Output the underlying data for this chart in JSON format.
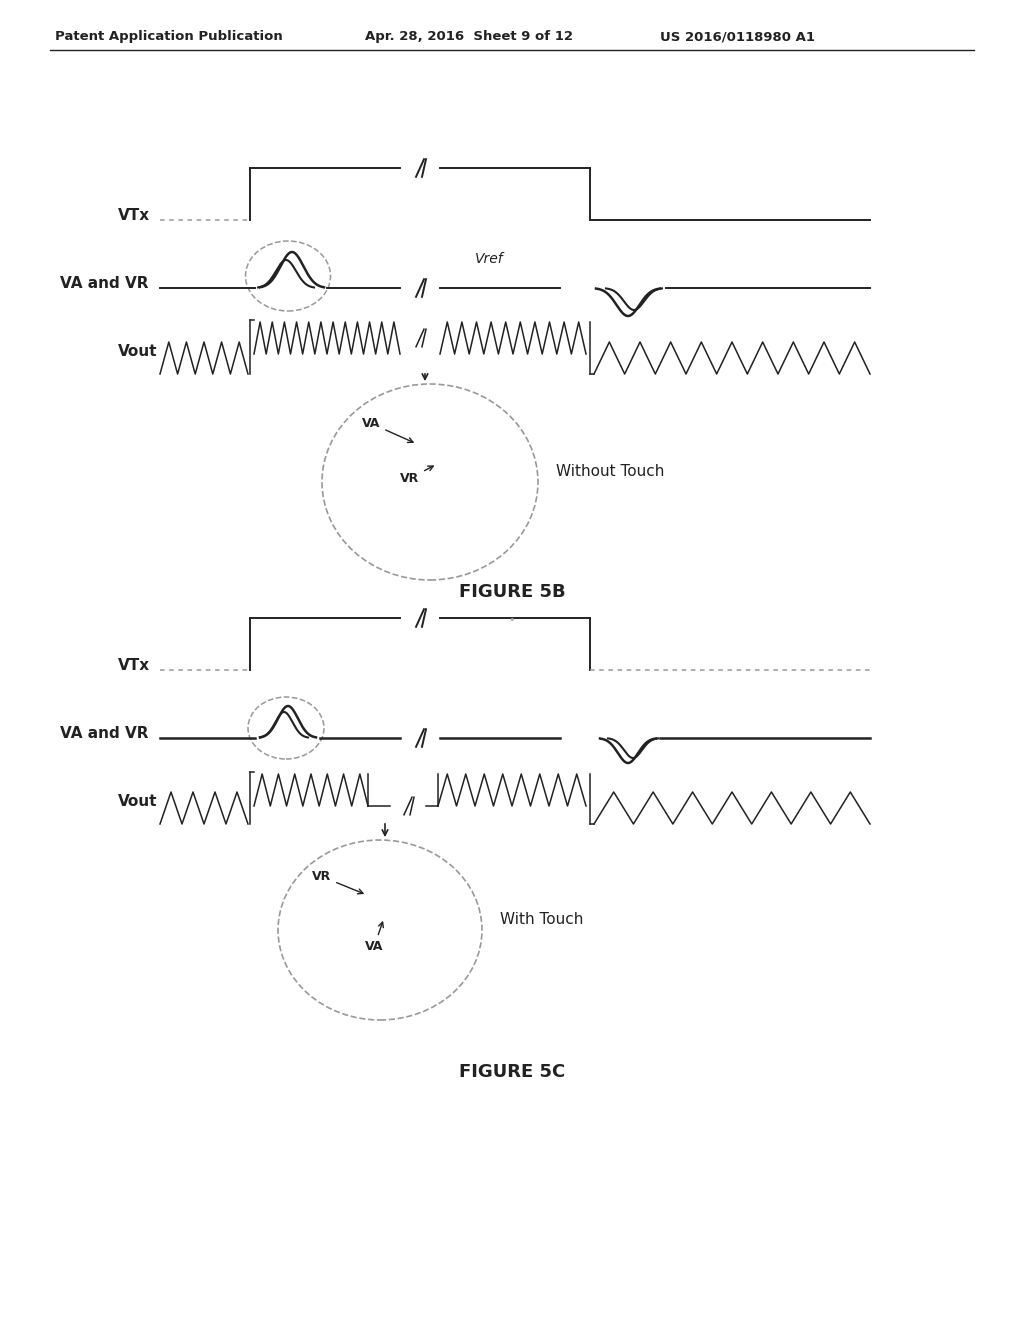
{
  "header_left": "Patent Application Publication",
  "header_mid": "Apr. 28, 2016  Sheet 9 of 12",
  "header_right": "US 2016/0118980 A1",
  "fig5b_label": "FIGURE 5B",
  "fig5c_label": "FIGURE 5C",
  "label_vtx": "VTx",
  "label_va_vr": "VA and VR",
  "label_vout": "Vout",
  "label_vref": "Vref",
  "label_without_touch": "Without Touch",
  "label_with_touch": "With Touch",
  "label_va": "VA",
  "label_vr": "VR",
  "bg_color": "#ffffff",
  "line_color": "#222222",
  "dotted_color": "#999999"
}
